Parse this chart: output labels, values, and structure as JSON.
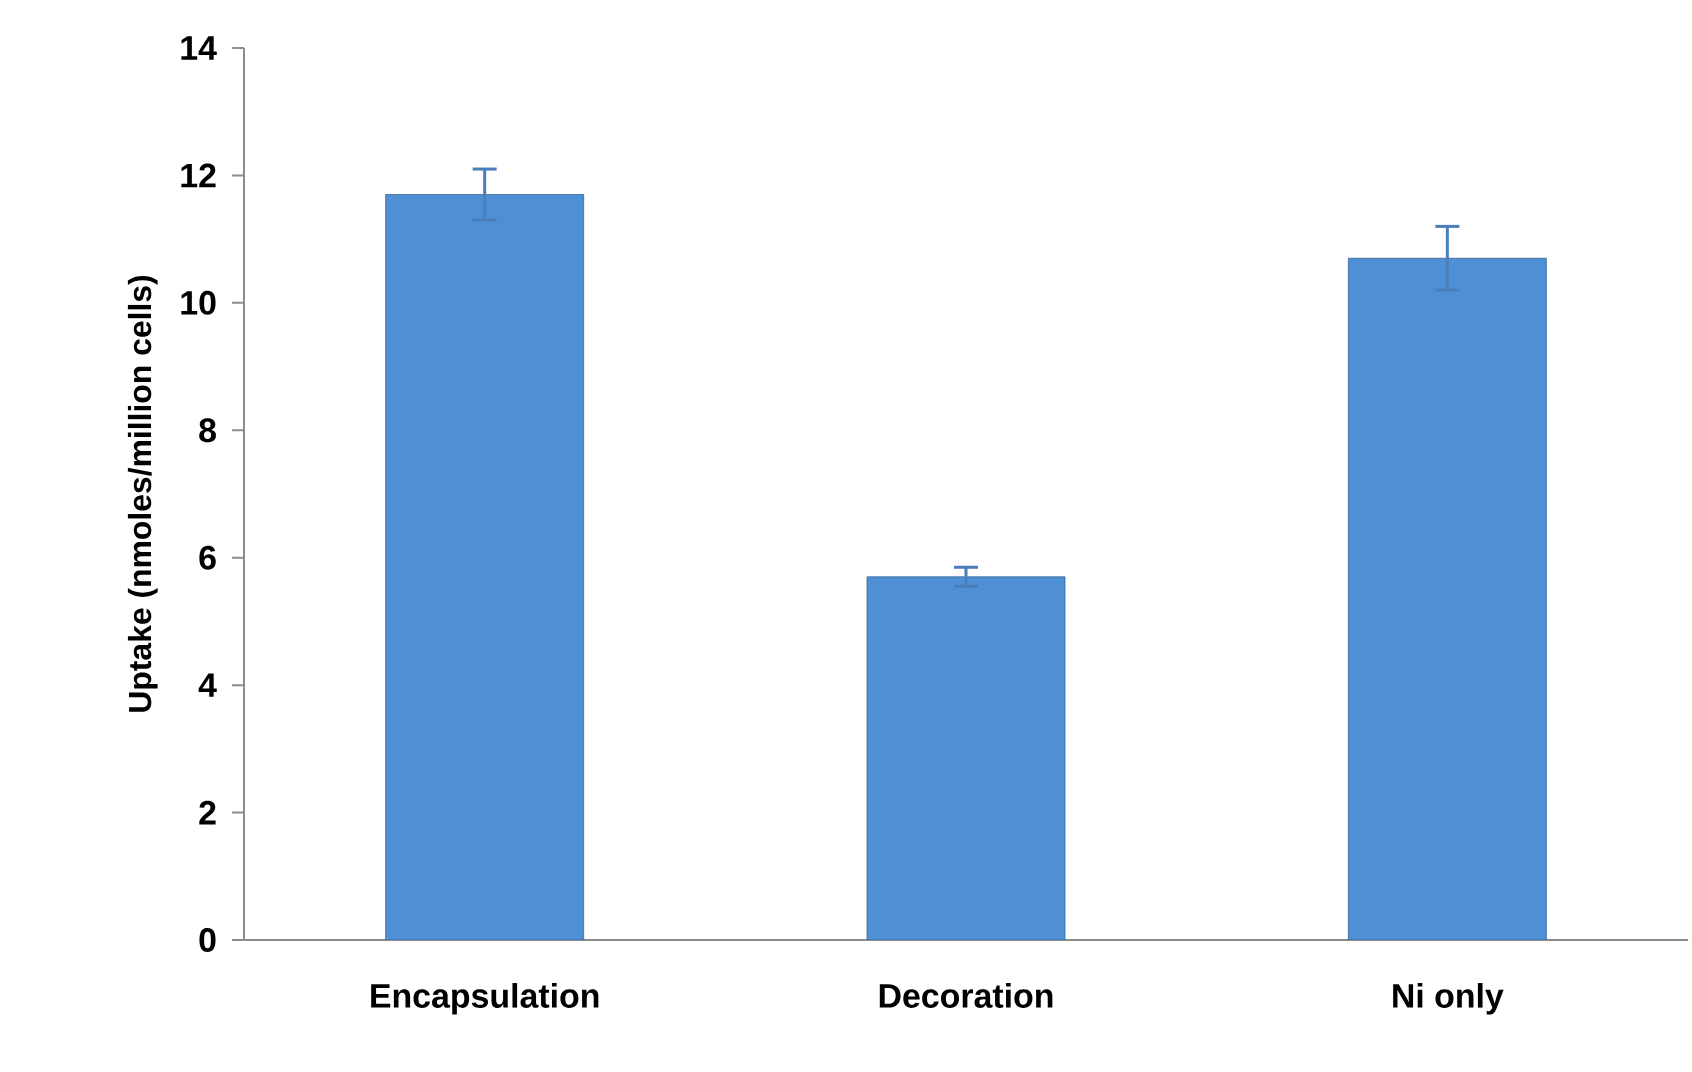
{
  "chart_data": {
    "type": "bar",
    "ylabel": "Uptake (nmoles/million cells)",
    "categories": [
      "Encapsulation",
      "Decoration",
      "Ni only"
    ],
    "values": [
      11.7,
      5.7,
      10.7
    ],
    "errors": [
      0.4,
      0.15,
      0.5
    ],
    "color": "#4f8fd6",
    "ylim": [
      0,
      14
    ],
    "yticks": [
      0,
      2,
      4,
      6,
      8,
      10,
      12,
      14
    ]
  }
}
